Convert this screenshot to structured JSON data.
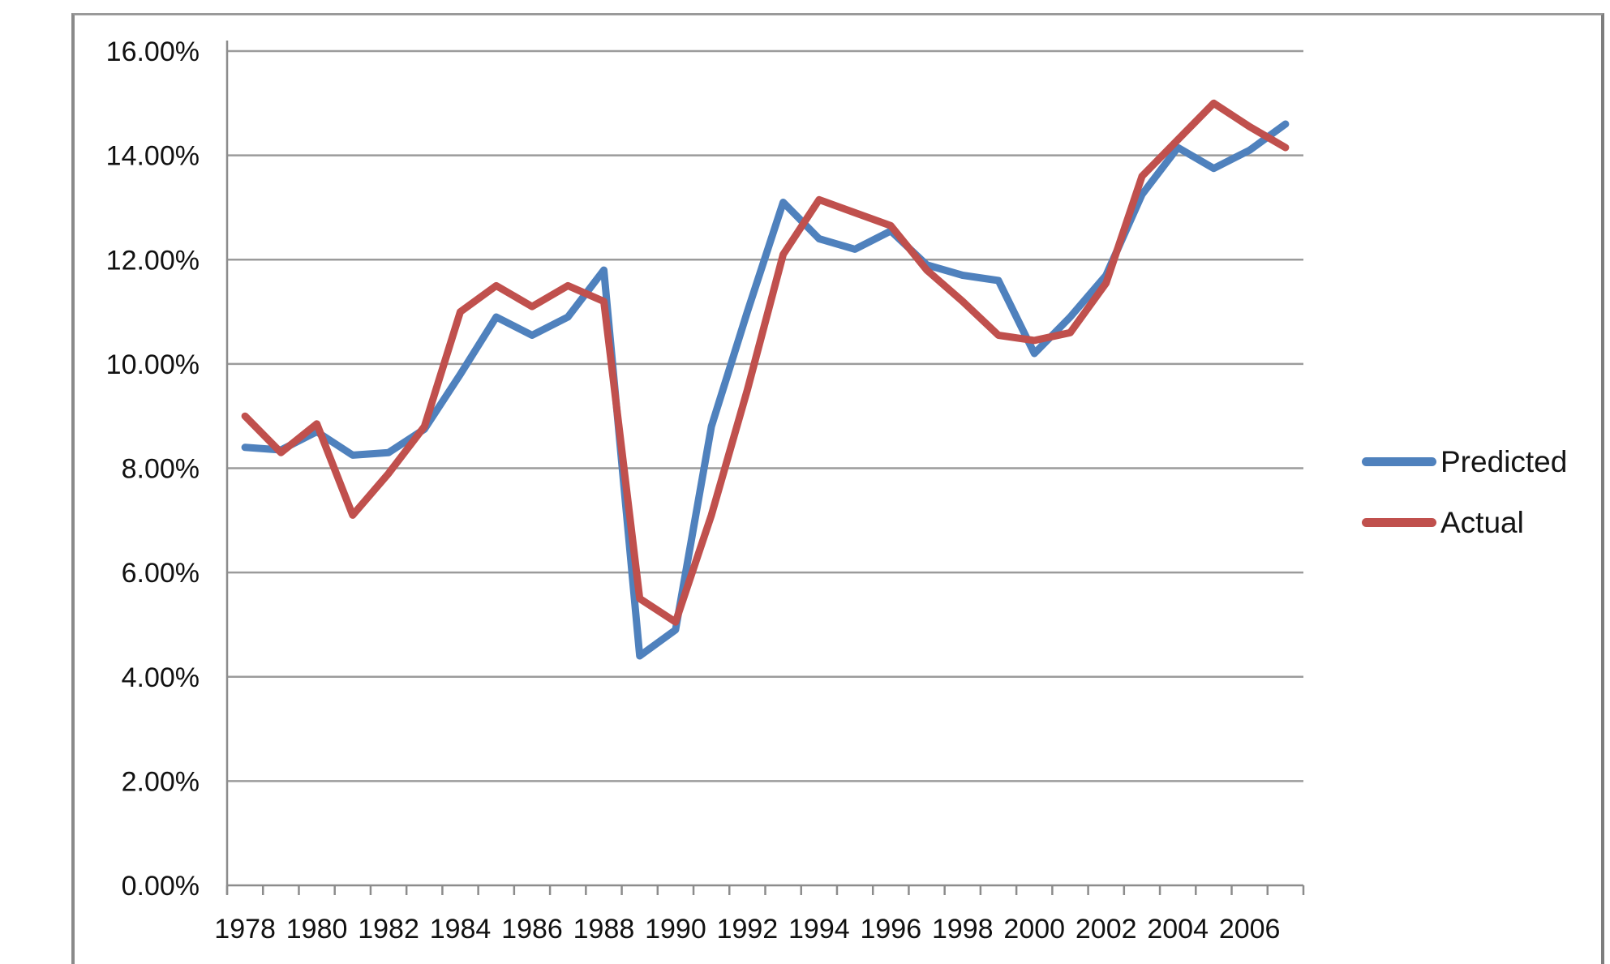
{
  "chart_data": {
    "type": "line",
    "title": "",
    "x": [
      1978,
      1979,
      1980,
      1981,
      1982,
      1983,
      1984,
      1985,
      1986,
      1987,
      1988,
      1989,
      1990,
      1991,
      1992,
      1993,
      1994,
      1995,
      1996,
      1997,
      1998,
      1999,
      2000,
      2001,
      2002,
      2003,
      2004,
      2005,
      2006,
      2007
    ],
    "x_tick_labels": [
      "1978",
      "1980",
      "1982",
      "1984",
      "1986",
      "1988",
      "1990",
      "1992",
      "1994",
      "1996",
      "1998",
      "2000",
      "2002",
      "2004",
      "2006"
    ],
    "y_tick_labels": [
      "16.00%",
      "14.00%",
      "12.00%",
      "10.00%",
      "8.00%",
      "6.00%",
      "4.00%",
      "2.00%",
      "0.00%"
    ],
    "ylim": [
      0,
      16
    ],
    "y_tick_step": 2,
    "grid": "horizontal",
    "legend_position": "right",
    "series": [
      {
        "name": "Predicted",
        "color": "#4F81BD",
        "values": [
          8.4,
          8.35,
          8.7,
          8.25,
          8.3,
          8.75,
          9.8,
          10.9,
          10.55,
          10.9,
          11.8,
          4.4,
          4.9,
          8.8,
          11.0,
          13.1,
          12.4,
          12.2,
          12.55,
          11.9,
          11.7,
          11.6,
          10.2,
          10.9,
          11.7,
          13.25,
          14.15,
          13.75,
          14.1,
          14.6
        ]
      },
      {
        "name": "Actual",
        "color": "#C0504D",
        "values": [
          9.0,
          8.3,
          8.85,
          7.1,
          7.9,
          8.8,
          11.0,
          11.5,
          11.1,
          11.5,
          11.2,
          5.5,
          5.05,
          7.1,
          9.5,
          12.1,
          13.15,
          12.9,
          12.65,
          11.8,
          11.2,
          10.55,
          10.45,
          10.6,
          11.55,
          13.6,
          14.3,
          15.0,
          14.55,
          14.15
        ]
      }
    ],
    "colors": {
      "gridline": "#9b9b9b",
      "axis": "#8c8c8c",
      "tick_text": "#111111",
      "chart_border": "#8a8a8a"
    }
  },
  "legend": {
    "predicted_label": "Predicted",
    "actual_label": "Actual"
  }
}
